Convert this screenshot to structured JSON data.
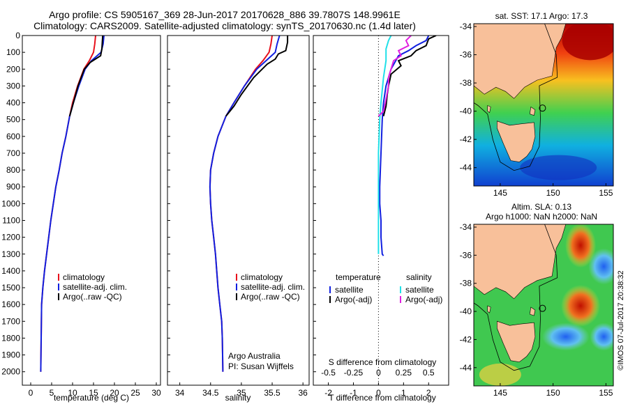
{
  "header": {
    "line1": "Argo profile: CS 5905167_369 28-Jun-2017 20170628_886 39.7807S 148.9961E",
    "line2": "Climatology: CARS2009. Satellite-adjusted climatology: synTS_20170630.nc (1.4d later)"
  },
  "colors": {
    "climatology": "#e8101c",
    "satellite": "#1020e0",
    "argo": "#000000",
    "satellite_s": "#20e0e8",
    "argo_s": "#e020e0",
    "land": "#f8c09a"
  },
  "chart_data": [
    {
      "type": "line",
      "id": "temperature",
      "xlabel": "temperature (deg C)",
      "ylabel": "",
      "xlim": [
        -2,
        31
      ],
      "ylim": [
        2080,
        0
      ],
      "xticks": [
        "0",
        "5",
        "10",
        "15",
        "20",
        "25",
        "30"
      ],
      "yticks": [
        "0",
        "100",
        "200",
        "300",
        "400",
        "500",
        "600",
        "700",
        "800",
        "900",
        "1000",
        "1100",
        "1200",
        "1300",
        "1400",
        "1500",
        "1600",
        "1700",
        "1800",
        "1900",
        "2000"
      ],
      "legend": [
        "climatology",
        "satellite-adj. clim.",
        "Argo(..raw -QC)"
      ],
      "series": [
        {
          "name": "climatology",
          "color": "#e8101c",
          "x": [
            15.5,
            15.3,
            15.0,
            14.0,
            12.7,
            11.2,
            10.0,
            9.3,
            8.4,
            7.5,
            6.8,
            6.0,
            5.4,
            4.8,
            4.3,
            3.8,
            3.3,
            2.9,
            2.6,
            2.4
          ],
          "y": [
            0,
            50,
            100,
            150,
            200,
            300,
            400,
            480,
            600,
            700,
            800,
            900,
            1000,
            1100,
            1200,
            1300,
            1400,
            1500,
            1600,
            2000
          ]
        },
        {
          "name": "satellite-adj. clim.",
          "color": "#1020e0",
          "x": [
            17.5,
            17.3,
            16.8,
            14.5,
            13.0,
            11.5,
            10.2,
            9.3,
            8.4,
            7.5,
            6.8,
            6.0,
            5.4,
            4.8,
            4.3,
            3.8,
            3.3,
            2.9,
            2.6,
            2.4
          ],
          "y": [
            0,
            50,
            100,
            150,
            200,
            300,
            400,
            480,
            600,
            700,
            800,
            900,
            1000,
            1100,
            1200,
            1300,
            1400,
            1500,
            1600,
            2000
          ]
        },
        {
          "name": "Argo(..raw -QC)",
          "color": "#000000",
          "x": [
            17.2,
            17.1,
            17.0,
            16.7,
            14.2,
            12.8,
            11.3,
            10.2,
            9.3
          ],
          "y": [
            0,
            40,
            80,
            120,
            160,
            200,
            300,
            400,
            480
          ]
        }
      ]
    },
    {
      "type": "line",
      "id": "salinity",
      "xlabel": "salinity",
      "ylabel": "",
      "xlim": [
        33.8,
        36.1
      ],
      "ylim": [
        2080,
        0
      ],
      "xticks": [
        "34",
        "34.5",
        "35",
        "35.5",
        "36"
      ],
      "legend": [
        "climatology",
        "satellite-adj. clim.",
        "Argo(..raw -QC)"
      ],
      "annotation": [
        "Argo Australia",
        "PI: Susan Wijffels"
      ],
      "series": [
        {
          "name": "climatology",
          "color": "#e8101c",
          "x": [
            35.5,
            35.48,
            35.45,
            35.35,
            35.23,
            35.05,
            34.88,
            34.75,
            34.62,
            34.55,
            34.5,
            34.49,
            34.5,
            34.52,
            34.55,
            34.58,
            34.6,
            34.62,
            34.65,
            34.68,
            34.69,
            34.7
          ],
          "y": [
            0,
            50,
            100,
            150,
            200,
            300,
            400,
            480,
            600,
            700,
            800,
            900,
            1000,
            1100,
            1200,
            1300,
            1400,
            1500,
            1600,
            1700,
            1800,
            2000
          ]
        },
        {
          "name": "satellite-adj. clim.",
          "color": "#1020e0",
          "x": [
            35.62,
            35.58,
            35.55,
            35.4,
            35.25,
            35.05,
            34.88,
            34.75,
            34.62,
            34.55,
            34.5,
            34.49,
            34.5,
            34.52,
            34.55,
            34.58,
            34.6,
            34.62,
            34.65,
            34.68,
            34.69,
            34.7
          ],
          "y": [
            0,
            50,
            100,
            150,
            200,
            300,
            400,
            480,
            600,
            700,
            800,
            900,
            1000,
            1100,
            1200,
            1300,
            1400,
            1500,
            1600,
            1700,
            1800,
            2000
          ]
        },
        {
          "name": "Argo(..raw -QC)",
          "color": "#000000",
          "x": [
            35.75,
            35.75,
            35.72,
            35.6,
            35.55,
            35.42,
            35.2,
            35.0,
            34.88,
            34.75
          ],
          "y": [
            0,
            40,
            90,
            110,
            140,
            170,
            250,
            350,
            420,
            480
          ]
        }
      ]
    },
    {
      "type": "line",
      "id": "difference",
      "xlabel": "T difference from climatology",
      "xlabel2": "S difference from climatology",
      "xlim": [
        -2.6,
        2.8
      ],
      "ylim": [
        2080,
        0
      ],
      "xticks": [
        "-2",
        "-1",
        "0",
        "1",
        "2"
      ],
      "xticks2": [
        "-0.5",
        "-0.25",
        "0",
        "0.25",
        "0.5"
      ],
      "legend_left_title": "temperature",
      "legend_right_title": "salinity",
      "legend_left": [
        "satellite",
        "Argo(-adj)"
      ],
      "legend_right": [
        "satellite",
        "Argo(-adj)"
      ],
      "series": [
        {
          "name": "T satellite",
          "color": "#1020e0",
          "x": [
            2.0,
            1.9,
            1.5,
            1.2,
            0.8,
            0.5,
            0.3,
            0.2,
            0.15,
            0.1,
            0.05,
            0.05,
            0.1,
            0.1,
            0.15,
            0.2
          ],
          "y": [
            0,
            30,
            60,
            90,
            120,
            200,
            300,
            400,
            500,
            700,
            900,
            1000,
            1100,
            1200,
            1300,
            1310
          ]
        },
        {
          "name": "T Argo(-adj)",
          "color": "#000000",
          "x": [
            2.3,
            2.0,
            1.9,
            1.5,
            1.3,
            0.8,
            0.9,
            0.5,
            0.4,
            0.35,
            0.3,
            0.2
          ],
          "y": [
            0,
            20,
            60,
            90,
            120,
            150,
            180,
            230,
            300,
            350,
            420,
            480
          ]
        },
        {
          "name": "S satellite",
          "color": "#20e0e8",
          "x": [
            0.5,
            0.4,
            0.3,
            0.3,
            0.2,
            0.1,
            0.05,
            0.0,
            0.0,
            0.0,
            0.0
          ],
          "y": [
            0,
            30,
            80,
            150,
            250,
            400,
            500,
            700,
            900,
            1100,
            1300
          ]
        },
        {
          "name": "S Argo(-adj)",
          "color": "#e020e0",
          "x": [
            1.3,
            1.1,
            1.2,
            0.8,
            0.9,
            0.6,
            0.5,
            0.4,
            0.4,
            0.3,
            0.2,
            0.0
          ],
          "y": [
            0,
            30,
            60,
            90,
            120,
            150,
            200,
            250,
            300,
            380,
            450,
            480
          ]
        }
      ]
    },
    {
      "type": "heatmap",
      "id": "sst-map",
      "title": "sat. SST: 17.1 Argo: 17.3",
      "xticks": [
        "145",
        "150",
        "155"
      ],
      "yticks": [
        "-34",
        "-36",
        "-38",
        "-40",
        "-42",
        "-44"
      ],
      "xlim": [
        142.5,
        155.7
      ],
      "ylim": [
        -45.3,
        -33.8
      ],
      "argo_position": {
        "lon": 148.9961,
        "lat": -39.7807
      }
    },
    {
      "type": "heatmap",
      "id": "sla-map",
      "title_line1": "Altim. SLA: 0.13",
      "title_line2": "Argo h1000: NaN h2000: NaN",
      "xticks": [
        "145",
        "150",
        "155"
      ],
      "yticks": [
        "-34",
        "-36",
        "-38",
        "-40",
        "-42",
        "-44"
      ],
      "xlim": [
        142.5,
        155.7
      ],
      "ylim": [
        -45.3,
        -33.8
      ],
      "argo_position": {
        "lon": 148.9961,
        "lat": -39.7807
      }
    }
  ],
  "credit": "©IMOS 07-Jul-2017 20:38:32"
}
